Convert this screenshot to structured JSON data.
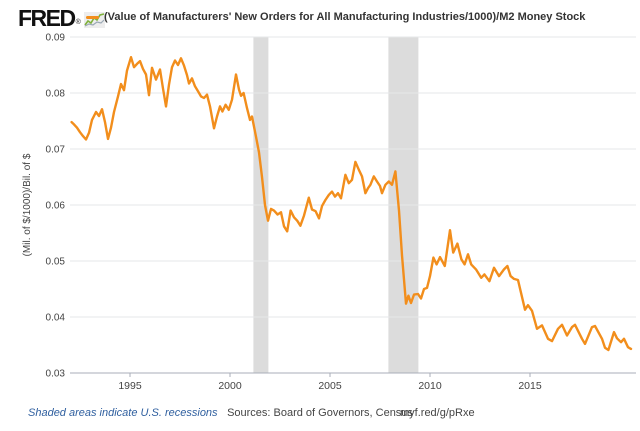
{
  "header": {
    "logo_text": "FRED",
    "registered_mark": "®",
    "legend_marker_color": "#f28e1c",
    "title": "(Value of Manufacturers' New Orders for All Manufacturing Industries/1000)/M2 Money Stock"
  },
  "footer": {
    "recession_note": "Shaded areas indicate U.S. recessions",
    "recession_note_color": "#2f5f9f",
    "sources": "Sources: Board of Governors, Census",
    "short_url": "myf.red/g/pRxe"
  },
  "chart_data": {
    "type": "line",
    "title": "(Value of Manufacturers' New Orders for All Manufacturing Industries/1000)/M2 Money Stock",
    "ylabel": "(Mil. of $/1000)/Bil. of $",
    "xlabel": "",
    "xlim": [
      1992.0,
      2020.3
    ],
    "ylim": [
      0.03,
      0.09
    ],
    "x_ticks": [
      1995,
      2000,
      2005,
      2010,
      2015
    ],
    "y_ticks": [
      0.03,
      0.04,
      0.05,
      0.06,
      0.07,
      0.08,
      0.09
    ],
    "grid": "horizontal-only",
    "legend_position": "top",
    "line_color": "#f28e1c",
    "grid_color": "#e6e7e9",
    "axis_color": "#a9aeb8",
    "tick_label_color": "#444444",
    "recession_band_color": "#dcdcdc",
    "recession_bands": [
      [
        2001.17,
        2001.92
      ],
      [
        2007.92,
        2009.42
      ]
    ],
    "series": [
      {
        "name": "(Value of Manufacturers' New Orders for All Manufacturing Industries/1000)/M2 Money Stock",
        "points": [
          [
            1992.08,
            0.0748
          ],
          [
            1992.2,
            0.0744
          ],
          [
            1992.35,
            0.0738
          ],
          [
            1992.5,
            0.073
          ],
          [
            1992.65,
            0.0723
          ],
          [
            1992.8,
            0.0717
          ],
          [
            1992.95,
            0.0729
          ],
          [
            1993.1,
            0.0752
          ],
          [
            1993.3,
            0.0766
          ],
          [
            1993.45,
            0.0759
          ],
          [
            1993.6,
            0.0771
          ],
          [
            1993.75,
            0.0748
          ],
          [
            1993.9,
            0.0718
          ],
          [
            1994.05,
            0.0738
          ],
          [
            1994.2,
            0.0766
          ],
          [
            1994.4,
            0.0794
          ],
          [
            1994.55,
            0.0816
          ],
          [
            1994.7,
            0.0805
          ],
          [
            1994.85,
            0.084
          ],
          [
            1995.05,
            0.0864
          ],
          [
            1995.2,
            0.0846
          ],
          [
            1995.35,
            0.0852
          ],
          [
            1995.5,
            0.0857
          ],
          [
            1995.65,
            0.0843
          ],
          [
            1995.8,
            0.0833
          ],
          [
            1995.95,
            0.0796
          ],
          [
            1996.1,
            0.0845
          ],
          [
            1996.3,
            0.0824
          ],
          [
            1996.5,
            0.0842
          ],
          [
            1996.65,
            0.0808
          ],
          [
            1996.8,
            0.0776
          ],
          [
            1996.95,
            0.0815
          ],
          [
            1997.1,
            0.0846
          ],
          [
            1997.25,
            0.0858
          ],
          [
            1997.4,
            0.085
          ],
          [
            1997.55,
            0.0862
          ],
          [
            1997.7,
            0.0849
          ],
          [
            1997.85,
            0.0832
          ],
          [
            1997.95,
            0.0817
          ],
          [
            1998.1,
            0.0826
          ],
          [
            1998.25,
            0.0812
          ],
          [
            1998.4,
            0.0803
          ],
          [
            1998.55,
            0.0794
          ],
          [
            1998.7,
            0.0791
          ],
          [
            1998.85,
            0.0797
          ],
          [
            1999.0,
            0.0776
          ],
          [
            1999.2,
            0.0737
          ],
          [
            1999.35,
            0.0758
          ],
          [
            1999.5,
            0.0776
          ],
          [
            1999.62,
            0.0767
          ],
          [
            1999.78,
            0.0779
          ],
          [
            1999.94,
            0.077
          ],
          [
            2000.1,
            0.0788
          ],
          [
            2000.3,
            0.0833
          ],
          [
            2000.45,
            0.0806
          ],
          [
            2000.55,
            0.0795
          ],
          [
            2000.68,
            0.08
          ],
          [
            2000.85,
            0.0773
          ],
          [
            2001.0,
            0.0752
          ],
          [
            2001.1,
            0.0758
          ],
          [
            2001.3,
            0.0722
          ],
          [
            2001.45,
            0.0694
          ],
          [
            2001.6,
            0.065
          ],
          [
            2001.75,
            0.06
          ],
          [
            2001.9,
            0.0572
          ],
          [
            2002.05,
            0.0593
          ],
          [
            2002.2,
            0.059
          ],
          [
            2002.38,
            0.0583
          ],
          [
            2002.55,
            0.0587
          ],
          [
            2002.7,
            0.0562
          ],
          [
            2002.86,
            0.0553
          ],
          [
            2003.03,
            0.059
          ],
          [
            2003.2,
            0.0578
          ],
          [
            2003.36,
            0.0572
          ],
          [
            2003.52,
            0.0563
          ],
          [
            2003.7,
            0.0581
          ],
          [
            2003.94,
            0.0613
          ],
          [
            2004.1,
            0.0592
          ],
          [
            2004.28,
            0.0589
          ],
          [
            2004.45,
            0.0576
          ],
          [
            2004.6,
            0.0598
          ],
          [
            2004.77,
            0.0609
          ],
          [
            2004.94,
            0.0618
          ],
          [
            2005.1,
            0.0624
          ],
          [
            2005.25,
            0.0615
          ],
          [
            2005.4,
            0.0621
          ],
          [
            2005.55,
            0.0612
          ],
          [
            2005.77,
            0.0654
          ],
          [
            2005.94,
            0.0639
          ],
          [
            2006.1,
            0.0645
          ],
          [
            2006.27,
            0.0677
          ],
          [
            2006.44,
            0.0663
          ],
          [
            2006.6,
            0.0651
          ],
          [
            2006.77,
            0.0621
          ],
          [
            2006.9,
            0.063
          ],
          [
            2007.02,
            0.0636
          ],
          [
            2007.19,
            0.0651
          ],
          [
            2007.35,
            0.0642
          ],
          [
            2007.5,
            0.0634
          ],
          [
            2007.6,
            0.0621
          ],
          [
            2007.77,
            0.0636
          ],
          [
            2007.94,
            0.0642
          ],
          [
            2008.1,
            0.0636
          ],
          [
            2008.27,
            0.066
          ],
          [
            2008.45,
            0.059
          ],
          [
            2008.6,
            0.051
          ],
          [
            2008.8,
            0.0424
          ],
          [
            2008.92,
            0.0438
          ],
          [
            2009.05,
            0.0425
          ],
          [
            2009.2,
            0.044
          ],
          [
            2009.4,
            0.0441
          ],
          [
            2009.55,
            0.0433
          ],
          [
            2009.7,
            0.045
          ],
          [
            2009.85,
            0.0452
          ],
          [
            2010.0,
            0.0473
          ],
          [
            2010.17,
            0.0506
          ],
          [
            2010.33,
            0.0494
          ],
          [
            2010.5,
            0.0507
          ],
          [
            2010.74,
            0.0491
          ],
          [
            2011.0,
            0.0555
          ],
          [
            2011.16,
            0.0515
          ],
          [
            2011.37,
            0.0531
          ],
          [
            2011.57,
            0.0503
          ],
          [
            2011.73,
            0.0494
          ],
          [
            2011.9,
            0.0512
          ],
          [
            2012.06,
            0.0494
          ],
          [
            2012.3,
            0.0485
          ],
          [
            2012.56,
            0.047
          ],
          [
            2012.72,
            0.0476
          ],
          [
            2012.97,
            0.0464
          ],
          [
            2013.2,
            0.0488
          ],
          [
            2013.45,
            0.0473
          ],
          [
            2013.7,
            0.0485
          ],
          [
            2013.87,
            0.0491
          ],
          [
            2014.03,
            0.0473
          ],
          [
            2014.2,
            0.0468
          ],
          [
            2014.4,
            0.0466
          ],
          [
            2014.75,
            0.0413
          ],
          [
            2014.9,
            0.0421
          ],
          [
            2015.1,
            0.0411
          ],
          [
            2015.35,
            0.0379
          ],
          [
            2015.6,
            0.0385
          ],
          [
            2015.9,
            0.0361
          ],
          [
            2016.1,
            0.0357
          ],
          [
            2016.4,
            0.0379
          ],
          [
            2016.6,
            0.0386
          ],
          [
            2016.85,
            0.0367
          ],
          [
            2017.1,
            0.0382
          ],
          [
            2017.25,
            0.0386
          ],
          [
            2017.6,
            0.0361
          ],
          [
            2017.75,
            0.0352
          ],
          [
            2018.1,
            0.0382
          ],
          [
            2018.25,
            0.0384
          ],
          [
            2018.6,
            0.0361
          ],
          [
            2018.75,
            0.0345
          ],
          [
            2018.92,
            0.0341
          ],
          [
            2019.2,
            0.0373
          ],
          [
            2019.35,
            0.0362
          ],
          [
            2019.55,
            0.0355
          ],
          [
            2019.7,
            0.0361
          ],
          [
            2019.9,
            0.0346
          ],
          [
            2020.05,
            0.0343
          ]
        ]
      }
    ]
  }
}
